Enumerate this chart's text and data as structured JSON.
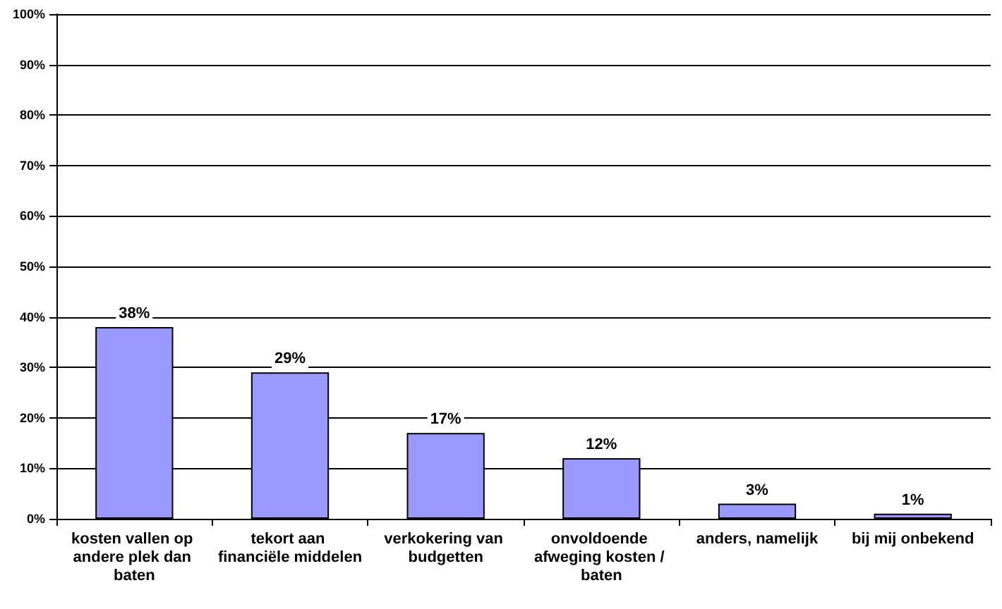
{
  "chart_data": {
    "type": "bar",
    "categories": [
      "kosten vallen op andere plek dan baten",
      "tekort aan financiële middelen",
      "verkokering van budgetten",
      "onvoldoende afweging kosten / baten",
      "anders, namelijk",
      "bij mij onbekend"
    ],
    "values": [
      38,
      29,
      17,
      12,
      3,
      1
    ],
    "value_labels": [
      "38%",
      "29%",
      "17%",
      "12%",
      "3%",
      "1%"
    ],
    "color": "#9999ff",
    "ylim": [
      0,
      100
    ],
    "yticks": [
      {
        "value": 0,
        "label": "0%"
      },
      {
        "value": 10,
        "label": "10%"
      },
      {
        "value": 20,
        "label": "20%"
      },
      {
        "value": 30,
        "label": "30%"
      },
      {
        "value": 40,
        "label": "40%"
      },
      {
        "value": 50,
        "label": "50%"
      },
      {
        "value": 60,
        "label": "60%"
      },
      {
        "value": 70,
        "label": "70%"
      },
      {
        "value": 80,
        "label": "80%"
      },
      {
        "value": 90,
        "label": "90%"
      },
      {
        "value": 100,
        "label": "100%"
      }
    ],
    "grid": "y"
  }
}
